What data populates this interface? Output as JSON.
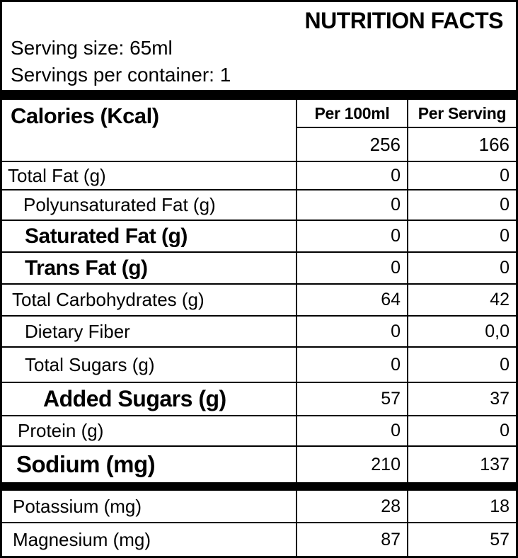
{
  "header": {
    "title": "NUTRITION FACTS",
    "serving_size": "Serving size: 65ml",
    "servings_per_container": "Servings per container: 1"
  },
  "table": {
    "calories": {
      "label": "Calories (Kcal)",
      "col_per100": "Per 100ml",
      "col_perserving": "Per Serving",
      "per100": "256",
      "perserving": "166"
    },
    "rows": [
      {
        "label": "Total Fat (g)",
        "per100": "0",
        "perserving": "0",
        "emphasis": "regular"
      },
      {
        "label": "Polyunsaturated Fat (g)",
        "per100": "0",
        "perserving": "0",
        "emphasis": "regular"
      },
      {
        "label": "Saturated Fat (g)",
        "per100": "0",
        "perserving": "0",
        "emphasis": "bold"
      },
      {
        "label": "Trans Fat (g)",
        "per100": "0",
        "perserving": "0",
        "emphasis": "bold"
      },
      {
        "label": "Total Carbohydrates (g)",
        "per100": "64",
        "perserving": "42",
        "emphasis": "regular"
      },
      {
        "label": "Dietary Fiber",
        "per100": "0",
        "perserving": "0,0",
        "emphasis": "regular"
      },
      {
        "label": "Total Sugars (g)",
        "per100": "0",
        "perserving": "0",
        "emphasis": "regular"
      },
      {
        "label": "Added Sugars (g)",
        "per100": "57",
        "perserving": "37",
        "emphasis": "bold"
      },
      {
        "label": "Protein (g)",
        "per100": "0",
        "perserving": "0",
        "emphasis": "regular"
      },
      {
        "label": "Sodium (mg)",
        "per100": "210",
        "perserving": "137",
        "emphasis": "bold"
      },
      {
        "label": "Potassium (mg)",
        "per100": "28",
        "perserving": "18",
        "emphasis": "regular"
      },
      {
        "label": "Magnesium (mg)",
        "per100": "87",
        "perserving": "57",
        "emphasis": "regular"
      }
    ]
  },
  "colors": {
    "text": "#000000",
    "border": "#000000",
    "background": "#ffffff"
  }
}
